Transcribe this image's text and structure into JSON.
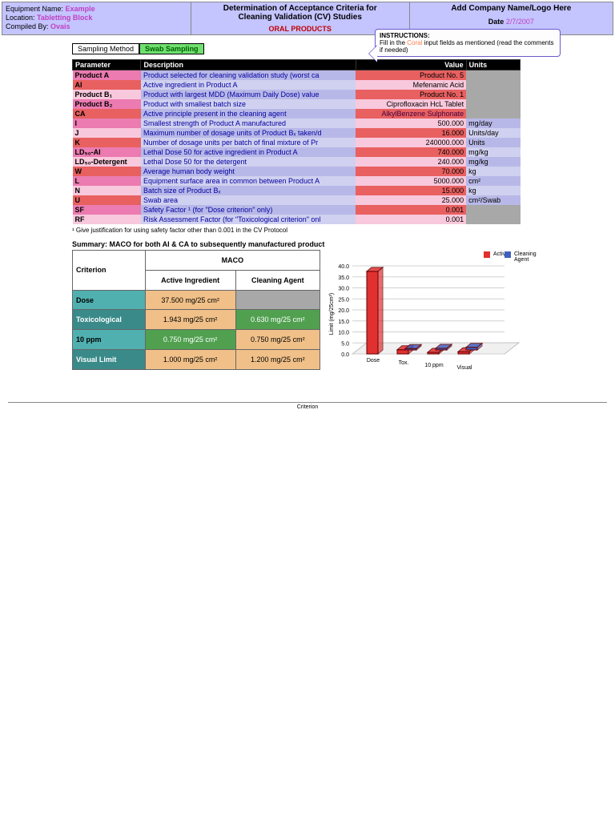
{
  "header": {
    "equipment_label": "Equipment Name:",
    "equipment_value": "Example",
    "location_label": "Location:",
    "location_value": "Tabletting Block",
    "compiled_label": "Compiled By:",
    "compiled_value": "Ovais",
    "title_line1": "Determination of Acceptance Criteria for",
    "title_line2": "Cleaning Validation (CV) Studies",
    "subtitle": "ORAL PRODUCTS",
    "company": "Add Company Name/Logo Here",
    "date_label": "Date",
    "date_value": "2/7/2007"
  },
  "sampling": {
    "label": "Sampling Method",
    "value": "Swab Sampling"
  },
  "instructions": {
    "title": "INSTRUCTIONS:",
    "text1": "Fill in the ",
    "text_coral": "Coral",
    "text2": " input fields as mentioned (read the comments if needed)"
  },
  "params": {
    "head": [
      "Parameter",
      "Description",
      "Value",
      "Units"
    ],
    "rows": [
      {
        "p": "Product A",
        "d": "Product selected for cleaning validation study (worst ca",
        "v": "Product No. 5",
        "u": "",
        "pbg": "bg-pink",
        "dbg": "bg-lav fg-blue",
        "vbg": "bg-red",
        "ubg": "bg-grey"
      },
      {
        "p": "AI",
        "d": "Active ingredient in Product A",
        "v": "Mefenamic Acid",
        "u": "",
        "pbg": "bg-red",
        "dbg": "bg-llav fg-blue",
        "vbg": "bg-lpink",
        "ubg": "bg-grey"
      },
      {
        "p": "Product B₁",
        "d": "Product with largest MDD (Maximum Daily Dose) value",
        "v": "Product No. 1",
        "u": "",
        "pbg": "bg-lpink",
        "dbg": "bg-lav fg-blue",
        "vbg": "bg-red",
        "ubg": "bg-grey"
      },
      {
        "p": "Product B₂",
        "d": "Product with smallest batch size",
        "v": "Ciprofloxacin HcL Tablet",
        "u": "",
        "pbg": "bg-pink",
        "dbg": "bg-llav fg-blue",
        "vbg": "bg-lpink",
        "ubg": "bg-grey"
      },
      {
        "p": "CA",
        "d": "Active principle present in the cleaning agent",
        "v": "AlkylBenzene Sulphonate",
        "u": "",
        "pbg": "bg-red",
        "dbg": "bg-lav fg-blue",
        "vbg": "bg-red fg-dark",
        "ubg": "bg-grey"
      },
      {
        "p": "I",
        "d": "Smallest strength of Product A manufactured",
        "v": "500.000",
        "u": "mg/day",
        "pbg": "bg-pink",
        "dbg": "bg-llav fg-blue",
        "vbg": "bg-lpink",
        "ubg": "bg-lav"
      },
      {
        "p": "J",
        "d": "Maximum number of dosage units of Product Bₓ taken/d",
        "v": "16.000",
        "u": "Units/day",
        "pbg": "bg-lpink",
        "dbg": "bg-lav fg-blue",
        "vbg": "bg-red",
        "ubg": "bg-llav"
      },
      {
        "p": "K",
        "d": "Number of dosage units per batch of final mixture of Pr",
        "v": "240000.000",
        "u": "Units",
        "pbg": "bg-red",
        "dbg": "bg-llav fg-blue",
        "vbg": "bg-lpink",
        "ubg": "bg-lav"
      },
      {
        "p": "LD₅₀-AI",
        "d": "Lethal Dose 50 for active ingredient in Product A",
        "v": "740.000",
        "u": "mg/kg",
        "pbg": "bg-pink",
        "dbg": "bg-lav fg-blue",
        "vbg": "bg-red",
        "ubg": "bg-llav"
      },
      {
        "p": "LD₅₀-Detergent",
        "d": "Lethal Dose 50 for the detergent",
        "v": "240.000",
        "u": "mg/kg",
        "pbg": "bg-lpink",
        "dbg": "bg-llav fg-blue",
        "vbg": "bg-lpink",
        "ubg": "bg-lav"
      },
      {
        "p": "W",
        "d": "Average human body weight",
        "v": "70.000",
        "u": "kg",
        "pbg": "bg-red",
        "dbg": "bg-lav fg-blue",
        "vbg": "bg-red",
        "ubg": "bg-llav"
      },
      {
        "p": "L",
        "d": "Equipment surface area in common between Product A",
        "v": "5000.000",
        "u": "cm²",
        "pbg": "bg-pink",
        "dbg": "bg-llav fg-blue",
        "vbg": "bg-lpink",
        "ubg": "bg-lav"
      },
      {
        "p": "N",
        "d": "Batch size of Product Bₓ",
        "v": "15.000",
        "u": "kg",
        "pbg": "bg-lpink",
        "dbg": "bg-lav fg-blue",
        "vbg": "bg-red",
        "ubg": "bg-llav"
      },
      {
        "p": "U",
        "d": "Swab area",
        "v": "25.000",
        "u": "cm²/Swab",
        "pbg": "bg-red",
        "dbg": "bg-llav fg-blue",
        "vbg": "bg-lpink",
        "ubg": "bg-lav"
      },
      {
        "p": "SF",
        "d": "Safety Factor ¹ (for \"Dose criterion\" only)",
        "v": "0.001",
        "u": "",
        "pbg": "bg-pink",
        "dbg": "bg-lav fg-blue",
        "vbg": "bg-red",
        "ubg": "bg-grey"
      },
      {
        "p": "RF",
        "d": "Risk Assessment Factor (for \"Toxicological criterion\" onl",
        "v": "0.001",
        "u": "",
        "pbg": "bg-lpink",
        "dbg": "bg-llav fg-blue",
        "vbg": "bg-lpink",
        "ubg": "bg-grey"
      }
    ]
  },
  "footnote": "¹ Give justification for using safety factor other than 0.001 in the CV Protocol",
  "summary": {
    "title": "Summary: MACO for both AI & CA to subsequently manufactured product",
    "head_criterion": "Criterion",
    "head_maco": "MACO",
    "sub_ai": "Active Ingredient",
    "sub_ca": "Cleaning Agent",
    "rows": [
      {
        "c": "Dose",
        "ai": "37.500 mg/25 cm²",
        "ca": "",
        "cbg": "bg-teal",
        "aibg": "bg-orange",
        "cabg": "bg-grey"
      },
      {
        "c": "Toxicological",
        "ai": "1.943 mg/25 cm²",
        "ca": "0.630 mg/25 cm²",
        "cbg": "bg-dteal",
        "aibg": "bg-orange",
        "cabg": "bg-green"
      },
      {
        "c": "10 ppm",
        "ai": "0.750 mg/25 cm²",
        "ca": "0.750 mg/25 cm²",
        "cbg": "bg-teal",
        "aibg": "bg-green",
        "cabg": "bg-orange"
      },
      {
        "c": "Visual Limit",
        "ai": "1.000 mg/25 cm²",
        "ca": "1.200 mg/25 cm²",
        "cbg": "bg-dteal",
        "aibg": "bg-orange",
        "cabg": "bg-orange"
      }
    ]
  },
  "chart": {
    "type": "bar3d",
    "legend": [
      {
        "label": "Active",
        "color": "#e03030"
      },
      {
        "label": "Cleaning Agent",
        "color": "#4060c0"
      }
    ],
    "ylabel": "Limit (mg/25cm²)",
    "xlabel": "Criterion",
    "ylim": [
      0,
      40
    ],
    "ytick_step": 5,
    "categories": [
      "Dose",
      "Tox.",
      "10 ppm",
      "Visual"
    ],
    "series": [
      {
        "name": "Active",
        "color": "#e03030",
        "values": [
          37.5,
          1.9,
          0.75,
          1.0
        ]
      },
      {
        "name": "Cleaning",
        "color": "#4060c0",
        "values": [
          0,
          0.63,
          0.75,
          1.2
        ]
      }
    ],
    "background_color": "#ffffff",
    "grid_color": "#d0d0d0",
    "font_size": 7
  },
  "bottom_label": "Criterion"
}
